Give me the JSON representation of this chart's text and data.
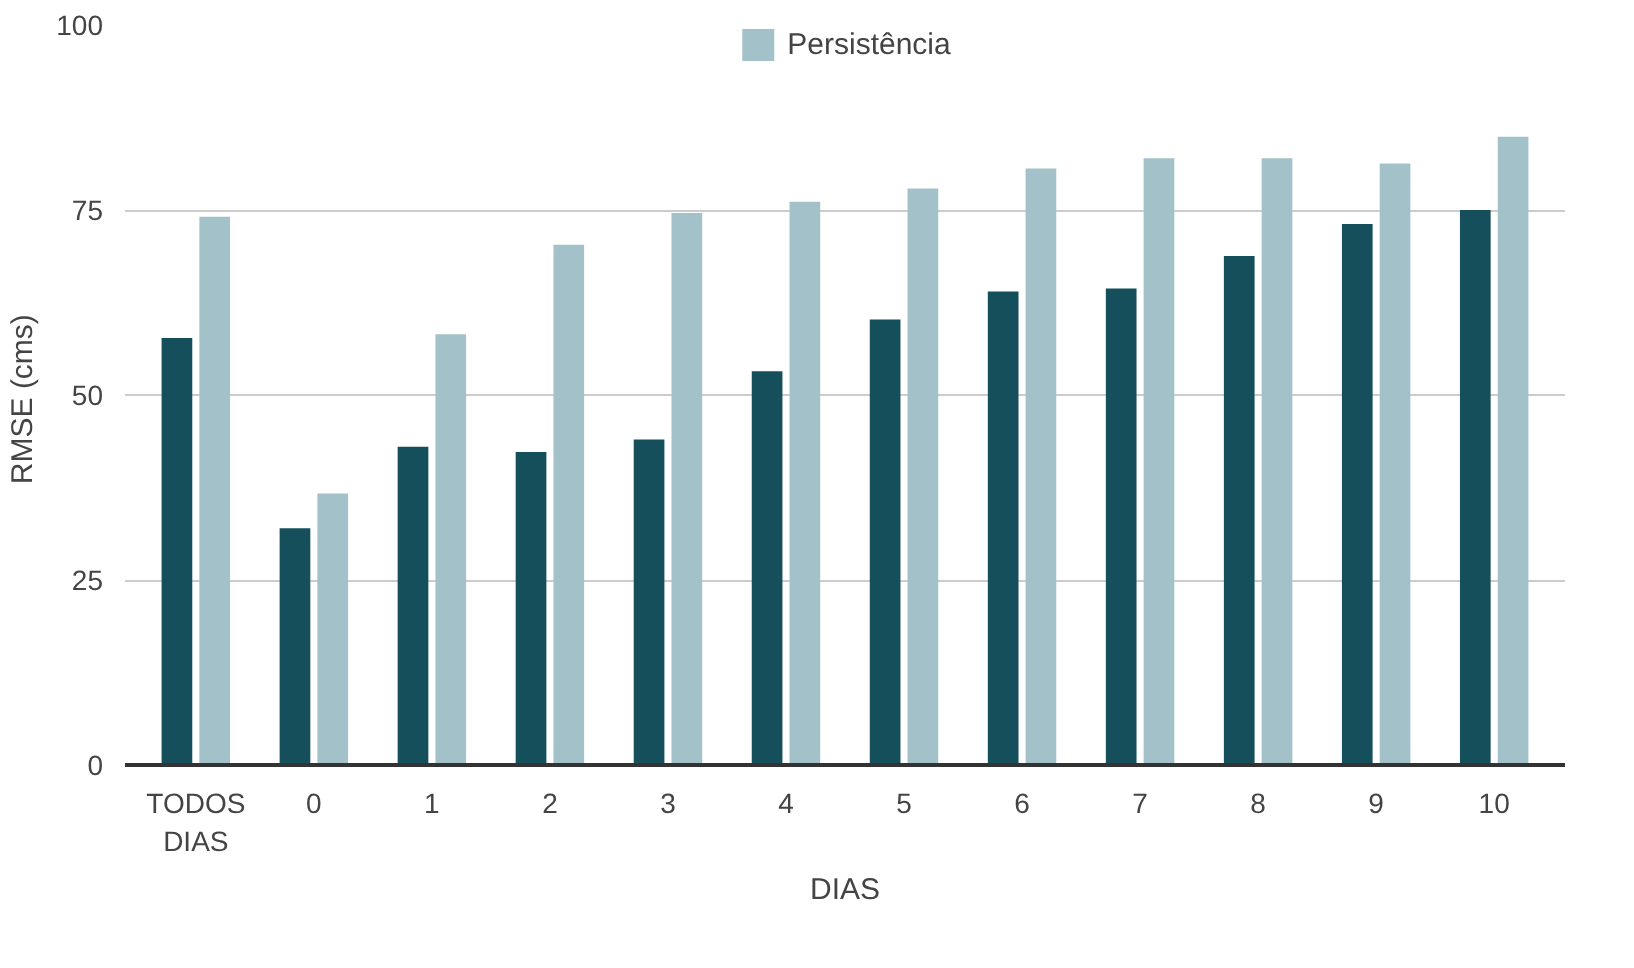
{
  "chart_data": {
    "type": "bar",
    "xlabel": "DIAS",
    "ylabel": "RMSE  (cms)",
    "categories": [
      "TODOS\nDIAS",
      "0",
      "1",
      "2",
      "3",
      "4",
      "5",
      "6",
      "7",
      "8",
      "9",
      "10"
    ],
    "series": [
      {
        "color": "#154f5b",
        "values": [
          57.7,
          32.0,
          43.0,
          42.3,
          44.0,
          53.2,
          60.2,
          64.0,
          64.4,
          68.8,
          73.1,
          75.0
        ]
      },
      {
        "name": "Persistência",
        "color": "#a3c1c8",
        "values": [
          74.1,
          36.7,
          58.2,
          70.3,
          74.6,
          76.1,
          77.9,
          80.6,
          82.0,
          82.0,
          81.3,
          84.9
        ]
      }
    ],
    "ylim": [
      0,
      100
    ],
    "yticks": [
      0,
      25,
      50,
      75,
      100
    ],
    "grid": "y",
    "legend": "top"
  }
}
